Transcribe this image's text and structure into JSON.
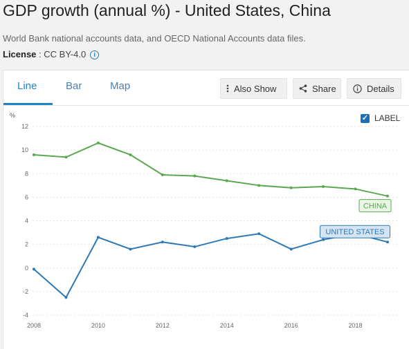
{
  "header": {
    "title": "GDP growth (annual %) - United States, China",
    "source": "World Bank national accounts data, and OECD National Accounts data files.",
    "license_label": "License",
    "license_value": " : CC BY-4.0",
    "info_icon": "info-circle-icon"
  },
  "tabs": [
    {
      "label": "Line",
      "active": true
    },
    {
      "label": "Bar",
      "active": false
    },
    {
      "label": "Map",
      "active": false
    }
  ],
  "toolbar": {
    "also_show": "Also Show",
    "share": "Share",
    "details": "Details"
  },
  "label_toggle": {
    "label": "LABEL",
    "checked": true
  },
  "colors": {
    "china": "#5aa850",
    "united_states": "#2d78b5",
    "accent": "#1f83c6"
  },
  "chart_data": {
    "type": "line",
    "ylabel": "%",
    "x": [
      2008,
      2009,
      2010,
      2011,
      2012,
      2013,
      2014,
      2015,
      2016,
      2017,
      2018,
      2019
    ],
    "xticks": [
      "2008",
      "2010",
      "2012",
      "2014",
      "2016",
      "2018"
    ],
    "yticks": [
      "12",
      "10",
      "8",
      "6",
      "4",
      "2",
      "0",
      "-2",
      "-4"
    ],
    "ylim": [
      -4,
      12
    ],
    "xlim": [
      2008,
      2019
    ],
    "grid": true,
    "series": [
      {
        "name": "CHINA",
        "values": [
          9.6,
          9.4,
          10.6,
          9.6,
          7.9,
          7.8,
          7.4,
          7.0,
          6.8,
          6.9,
          6.7,
          6.1
        ]
      },
      {
        "name": "UNITED STATES",
        "values": [
          -0.1,
          -2.5,
          2.6,
          1.6,
          2.2,
          1.8,
          2.5,
          2.9,
          1.6,
          2.4,
          2.9,
          2.2
        ]
      }
    ]
  }
}
